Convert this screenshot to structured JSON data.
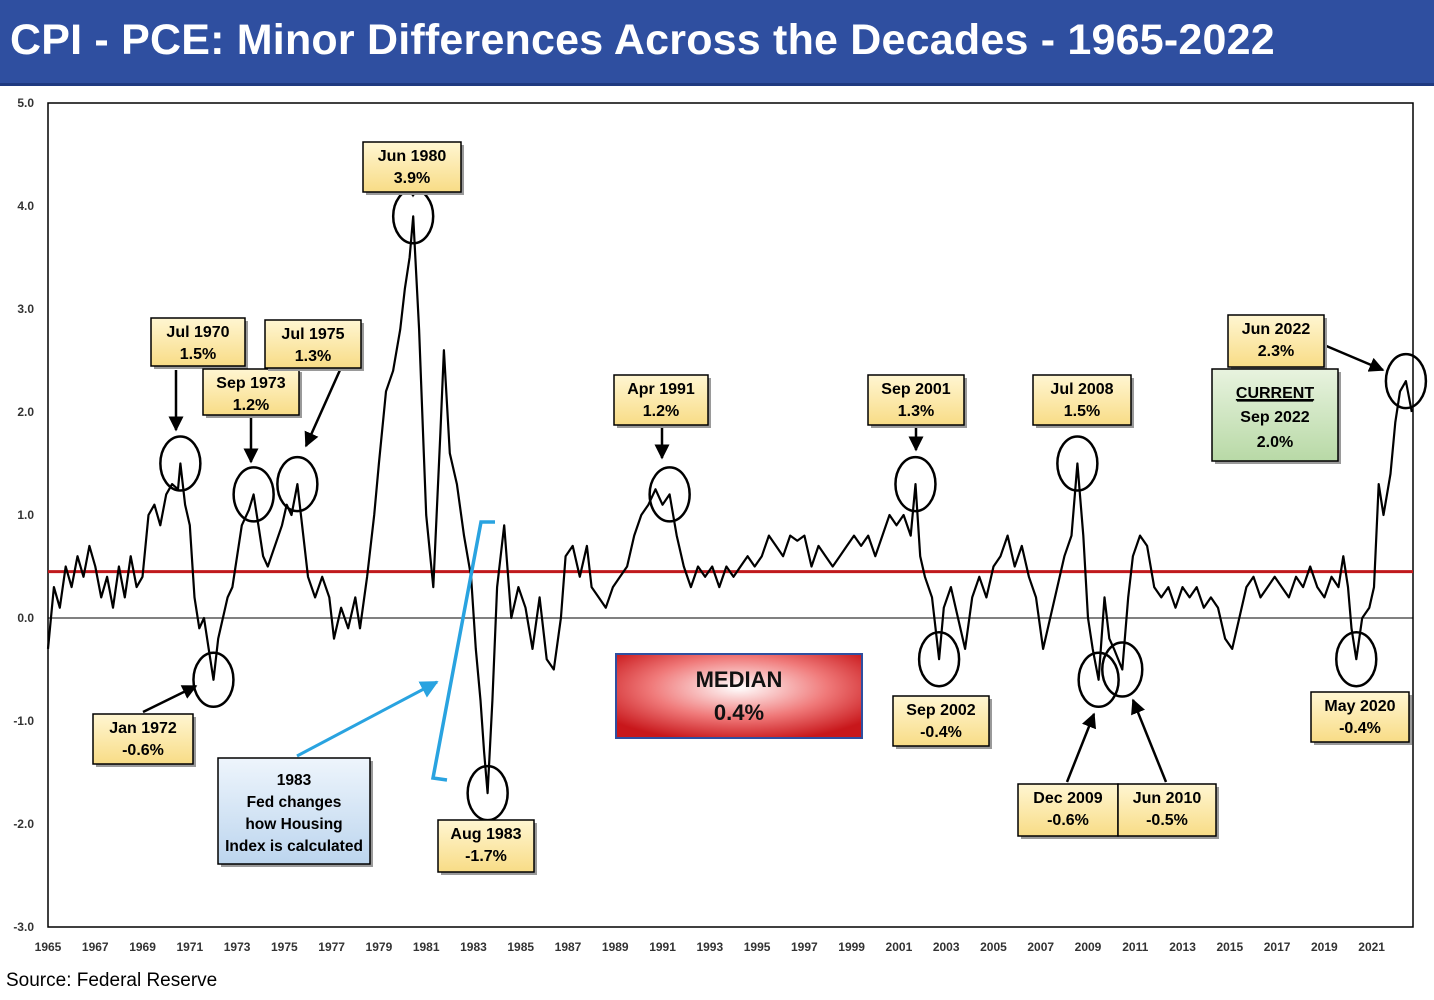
{
  "title": "CPI - PCE: Minor Differences Across the Decades - 1965-2022",
  "source": "Source: Federal Reserve",
  "chart_data": {
    "type": "line",
    "ylim": [
      -3.0,
      5.0
    ],
    "xlim": [
      1965,
      2022.75
    ],
    "y_ticks": [
      "5.0",
      "4.0",
      "3.0",
      "2.0",
      "1.0",
      "0.0",
      "-1.0",
      "-2.0",
      "-3.0"
    ],
    "x_ticks": [
      "1965",
      "1967",
      "1969",
      "1971",
      "1973",
      "1975",
      "1977",
      "1979",
      "1981",
      "1983",
      "1985",
      "1987",
      "1989",
      "1991",
      "1993",
      "1995",
      "1997",
      "1999",
      "2001",
      "2003",
      "2005",
      "2007",
      "2009",
      "2011",
      "2013",
      "2015",
      "2017",
      "2019",
      "2021"
    ],
    "median": 0.45,
    "colors": {
      "line": "#000000",
      "median": "#c0191c",
      "callout": "#fce9a8",
      "note": "#d6e6f5",
      "current": "#d4e8c8",
      "bracket": "#29a3e0"
    },
    "series": [
      {
        "points": [
          [
            1965.0,
            -0.3
          ],
          [
            1965.25,
            0.3
          ],
          [
            1965.5,
            0.1
          ],
          [
            1965.75,
            0.5
          ],
          [
            1966.0,
            0.3
          ],
          [
            1966.25,
            0.6
          ],
          [
            1966.5,
            0.4
          ],
          [
            1966.75,
            0.7
          ],
          [
            1967.0,
            0.5
          ],
          [
            1967.25,
            0.2
          ],
          [
            1967.5,
            0.4
          ],
          [
            1967.75,
            0.1
          ],
          [
            1968.0,
            0.5
          ],
          [
            1968.25,
            0.2
          ],
          [
            1968.5,
            0.6
          ],
          [
            1968.75,
            0.3
          ],
          [
            1969.0,
            0.4
          ],
          [
            1969.25,
            1.0
          ],
          [
            1969.5,
            1.1
          ],
          [
            1969.75,
            0.9
          ],
          [
            1970.0,
            1.2
          ],
          [
            1970.25,
            1.3
          ],
          [
            1970.5,
            1.25
          ],
          [
            1970.6,
            1.5
          ],
          [
            1970.8,
            1.1
          ],
          [
            1971.0,
            0.9
          ],
          [
            1971.2,
            0.2
          ],
          [
            1971.4,
            -0.1
          ],
          [
            1971.6,
            0.0
          ],
          [
            1971.8,
            -0.3
          ],
          [
            1972.0,
            -0.6
          ],
          [
            1972.2,
            -0.2
          ],
          [
            1972.4,
            0.0
          ],
          [
            1972.6,
            0.2
          ],
          [
            1972.8,
            0.3
          ],
          [
            1973.0,
            0.6
          ],
          [
            1973.2,
            0.9
          ],
          [
            1973.5,
            1.05
          ],
          [
            1973.7,
            1.2
          ],
          [
            1973.9,
            0.9
          ],
          [
            1974.1,
            0.6
          ],
          [
            1974.3,
            0.5
          ],
          [
            1974.6,
            0.7
          ],
          [
            1974.9,
            0.9
          ],
          [
            1975.1,
            1.1
          ],
          [
            1975.3,
            1.0
          ],
          [
            1975.55,
            1.3
          ],
          [
            1975.8,
            0.8
          ],
          [
            1976.0,
            0.4
          ],
          [
            1976.3,
            0.2
          ],
          [
            1976.6,
            0.4
          ],
          [
            1976.9,
            0.2
          ],
          [
            1977.1,
            -0.2
          ],
          [
            1977.4,
            0.1
          ],
          [
            1977.7,
            -0.1
          ],
          [
            1978.0,
            0.2
          ],
          [
            1978.2,
            -0.1
          ],
          [
            1978.5,
            0.4
          ],
          [
            1978.8,
            1.0
          ],
          [
            1979.0,
            1.5
          ],
          [
            1979.3,
            2.2
          ],
          [
            1979.6,
            2.4
          ],
          [
            1979.9,
            2.8
          ],
          [
            1980.1,
            3.2
          ],
          [
            1980.3,
            3.5
          ],
          [
            1980.45,
            3.9
          ],
          [
            1980.7,
            2.8
          ],
          [
            1980.9,
            1.6
          ],
          [
            1981.0,
            1.0
          ],
          [
            1981.3,
            0.3
          ],
          [
            1981.6,
            1.8
          ],
          [
            1981.75,
            2.6
          ],
          [
            1982.0,
            1.6
          ],
          [
            1982.3,
            1.3
          ],
          [
            1982.6,
            0.8
          ],
          [
            1982.9,
            0.4
          ],
          [
            1983.1,
            -0.3
          ],
          [
            1983.3,
            -0.8
          ],
          [
            1983.45,
            -1.3
          ],
          [
            1983.6,
            -1.7
          ],
          [
            1983.8,
            -0.8
          ],
          [
            1984.0,
            0.3
          ],
          [
            1984.3,
            0.9
          ],
          [
            1984.6,
            0.0
          ],
          [
            1984.9,
            0.3
          ],
          [
            1985.2,
            0.1
          ],
          [
            1985.5,
            -0.3
          ],
          [
            1985.8,
            0.2
          ],
          [
            1986.1,
            -0.4
          ],
          [
            1986.4,
            -0.5
          ],
          [
            1986.7,
            0.0
          ],
          [
            1986.9,
            0.6
          ],
          [
            1987.2,
            0.7
          ],
          [
            1987.5,
            0.4
          ],
          [
            1987.8,
            0.7
          ],
          [
            1988.0,
            0.3
          ],
          [
            1988.3,
            0.2
          ],
          [
            1988.6,
            0.1
          ],
          [
            1988.9,
            0.3
          ],
          [
            1989.2,
            0.4
          ],
          [
            1989.5,
            0.5
          ],
          [
            1989.8,
            0.8
          ],
          [
            1990.1,
            1.0
          ],
          [
            1990.4,
            1.1
          ],
          [
            1990.7,
            1.25
          ],
          [
            1991.0,
            1.1
          ],
          [
            1991.3,
            1.2
          ],
          [
            1991.6,
            0.8
          ],
          [
            1991.9,
            0.5
          ],
          [
            1992.2,
            0.3
          ],
          [
            1992.5,
            0.5
          ],
          [
            1992.8,
            0.4
          ],
          [
            1993.1,
            0.5
          ],
          [
            1993.4,
            0.3
          ],
          [
            1993.7,
            0.5
          ],
          [
            1994.0,
            0.4
          ],
          [
            1994.3,
            0.5
          ],
          [
            1994.6,
            0.6
          ],
          [
            1994.9,
            0.5
          ],
          [
            1995.2,
            0.6
          ],
          [
            1995.5,
            0.8
          ],
          [
            1995.8,
            0.7
          ],
          [
            1996.1,
            0.6
          ],
          [
            1996.4,
            0.8
          ],
          [
            1996.7,
            0.75
          ],
          [
            1997.0,
            0.8
          ],
          [
            1997.3,
            0.5
          ],
          [
            1997.6,
            0.7
          ],
          [
            1997.9,
            0.6
          ],
          [
            1998.2,
            0.5
          ],
          [
            1998.5,
            0.6
          ],
          [
            1998.8,
            0.7
          ],
          [
            1999.1,
            0.8
          ],
          [
            1999.4,
            0.7
          ],
          [
            1999.7,
            0.8
          ],
          [
            2000.0,
            0.6
          ],
          [
            2000.3,
            0.8
          ],
          [
            2000.6,
            1.0
          ],
          [
            2000.9,
            0.9
          ],
          [
            2001.2,
            1.0
          ],
          [
            2001.5,
            0.8
          ],
          [
            2001.7,
            1.3
          ],
          [
            2001.9,
            0.6
          ],
          [
            2002.1,
            0.4
          ],
          [
            2002.4,
            0.2
          ],
          [
            2002.7,
            -0.4
          ],
          [
            2002.9,
            0.1
          ],
          [
            2003.2,
            0.3
          ],
          [
            2003.5,
            0.0
          ],
          [
            2003.8,
            -0.3
          ],
          [
            2004.1,
            0.2
          ],
          [
            2004.4,
            0.4
          ],
          [
            2004.7,
            0.2
          ],
          [
            2005.0,
            0.5
          ],
          [
            2005.3,
            0.6
          ],
          [
            2005.6,
            0.8
          ],
          [
            2005.9,
            0.5
          ],
          [
            2006.2,
            0.7
          ],
          [
            2006.5,
            0.4
          ],
          [
            2006.8,
            0.2
          ],
          [
            2007.1,
            -0.3
          ],
          [
            2007.4,
            0.0
          ],
          [
            2007.7,
            0.3
          ],
          [
            2008.0,
            0.6
          ],
          [
            2008.3,
            0.8
          ],
          [
            2008.55,
            1.5
          ],
          [
            2008.8,
            0.8
          ],
          [
            2009.0,
            0.0
          ],
          [
            2009.2,
            -0.3
          ],
          [
            2009.45,
            -0.6
          ],
          [
            2009.7,
            0.2
          ],
          [
            2009.9,
            -0.2
          ],
          [
            2010.1,
            -0.3
          ],
          [
            2010.45,
            -0.5
          ],
          [
            2010.7,
            0.2
          ],
          [
            2010.9,
            0.6
          ],
          [
            2011.2,
            0.8
          ],
          [
            2011.5,
            0.7
          ],
          [
            2011.8,
            0.3
          ],
          [
            2012.1,
            0.2
          ],
          [
            2012.4,
            0.3
          ],
          [
            2012.7,
            0.1
          ],
          [
            2013.0,
            0.3
          ],
          [
            2013.3,
            0.2
          ],
          [
            2013.6,
            0.3
          ],
          [
            2013.9,
            0.1
          ],
          [
            2014.2,
            0.2
          ],
          [
            2014.5,
            0.1
          ],
          [
            2014.8,
            -0.2
          ],
          [
            2015.1,
            -0.3
          ],
          [
            2015.4,
            0.0
          ],
          [
            2015.7,
            0.3
          ],
          [
            2016.0,
            0.4
          ],
          [
            2016.3,
            0.2
          ],
          [
            2016.6,
            0.3
          ],
          [
            2016.9,
            0.4
          ],
          [
            2017.2,
            0.3
          ],
          [
            2017.5,
            0.2
          ],
          [
            2017.8,
            0.4
          ],
          [
            2018.1,
            0.3
          ],
          [
            2018.4,
            0.5
          ],
          [
            2018.7,
            0.3
          ],
          [
            2019.0,
            0.2
          ],
          [
            2019.3,
            0.4
          ],
          [
            2019.6,
            0.3
          ],
          [
            2019.8,
            0.6
          ],
          [
            2020.0,
            0.3
          ],
          [
            2020.15,
            -0.1
          ],
          [
            2020.35,
            -0.4
          ],
          [
            2020.6,
            0.0
          ],
          [
            2020.9,
            0.1
          ],
          [
            2021.1,
            0.3
          ],
          [
            2021.3,
            1.3
          ],
          [
            2021.5,
            1.0
          ],
          [
            2021.8,
            1.4
          ],
          [
            2022.0,
            1.9
          ],
          [
            2022.2,
            2.2
          ],
          [
            2022.45,
            2.3
          ],
          [
            2022.7,
            2.0
          ]
        ]
      }
    ],
    "callouts": [
      {
        "label": "Jul 1970",
        "value": "1.5%",
        "x": 1970.6,
        "y": 1.5
      },
      {
        "label": "Sep 1973",
        "value": "1.2%",
        "x": 1973.7,
        "y": 1.2
      },
      {
        "label": "Jul 1975",
        "value": "1.3%",
        "x": 1975.55,
        "y": 1.3
      },
      {
        "label": "Jun 1980",
        "value": "3.9%",
        "x": 1980.45,
        "y": 3.9
      },
      {
        "label": "Jan 1972",
        "value": "-0.6%",
        "x": 1972.0,
        "y": -0.6
      },
      {
        "label": "Aug 1983",
        "value": "-1.7%",
        "x": 1983.6,
        "y": -1.7
      },
      {
        "label": "Apr 1991",
        "value": "1.2%",
        "x": 1991.3,
        "y": 1.2
      },
      {
        "label": "Sep 2001",
        "value": "1.3%",
        "x": 2001.7,
        "y": 1.3
      },
      {
        "label": "Jul 2008",
        "value": "1.5%",
        "x": 2008.55,
        "y": 1.5
      },
      {
        "label": "Sep 2002",
        "value": "-0.4%",
        "x": 2002.7,
        "y": -0.4
      },
      {
        "label": "Dec 2009",
        "value": "-0.6%",
        "x": 2009.45,
        "y": -0.6
      },
      {
        "label": "Jun 2010",
        "value": "-0.5%",
        "x": 2010.45,
        "y": -0.5
      },
      {
        "label": "May 2020",
        "value": "-0.4%",
        "x": 2020.35,
        "y": -0.4
      },
      {
        "label": "Jun 2022",
        "value": "2.3%",
        "x": 2022.45,
        "y": 2.3
      }
    ],
    "current": {
      "heading": "CURRENT",
      "date": "Sep 2022",
      "value": "2.0%"
    },
    "median_box": {
      "label": "MEDIAN",
      "value": "0.4%"
    },
    "note": {
      "lines": [
        "1983",
        "Fed changes",
        "how Housing",
        "Index is calculated"
      ]
    }
  }
}
